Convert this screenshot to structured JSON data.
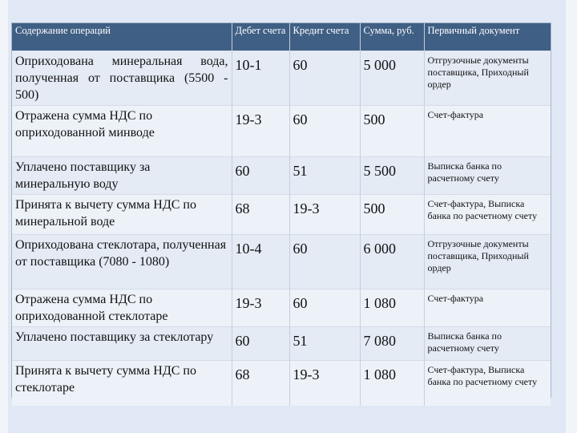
{
  "table": {
    "headers": [
      "Содержание операций",
      "Дебет счета",
      "Кредит счета",
      "Сумма, руб.",
      "Первичный документ"
    ],
    "rows": [
      {
        "op": "Оприходована минеральная вода, полученная от поставщика (5500 - 500)",
        "debit": "10-1",
        "credit": "60",
        "sum": "5 000",
        "doc": "Отгрузочные документы поставщика, Приходный ордер"
      },
      {
        "op": "Отражена сумма НДС по оприходованной минводе",
        "debit": "19-3",
        "credit": "60",
        "sum": "500",
        "doc": "Счет-фактура"
      },
      {
        "op": "Уплачено поставщику за минеральную воду",
        "debit": "60",
        "credit": "51",
        "sum": "5 500",
        "doc": "Выписка банка по расчетному счету"
      },
      {
        "op": "Принята к вычету сумма НДС по минеральной воде",
        "debit": "68",
        "credit": "19-3",
        "sum": "500",
        "doc": "Счет-фактура, Выписка банка по расчетному счету"
      },
      {
        "op": "Оприходована стеклотара, полученная от поставщика (7080 - 1080)",
        "debit": "10-4",
        "credit": "60",
        "sum": "6 000",
        "doc": "Отгрузочные документы поставщика, Приходный ордер"
      },
      {
        "op": "Отражена сумма НДС по оприходованной стеклотаре",
        "debit": "19-3",
        "credit": "60",
        "sum": "1 080",
        "doc": "Счет-фактура"
      },
      {
        "op": "Уплачено поставщику за стеклотару",
        "debit": "60",
        "credit": "51",
        "sum": "7 080",
        "doc": "Выписка банка по расчетному счету"
      },
      {
        "op": "Принята к вычету сумма НДС по стеклотаре",
        "debit": "68",
        "credit": "19-3",
        "sum": "1 080",
        "doc": "Счет-фактура, Выписка банка по расчетному счету"
      }
    ]
  }
}
